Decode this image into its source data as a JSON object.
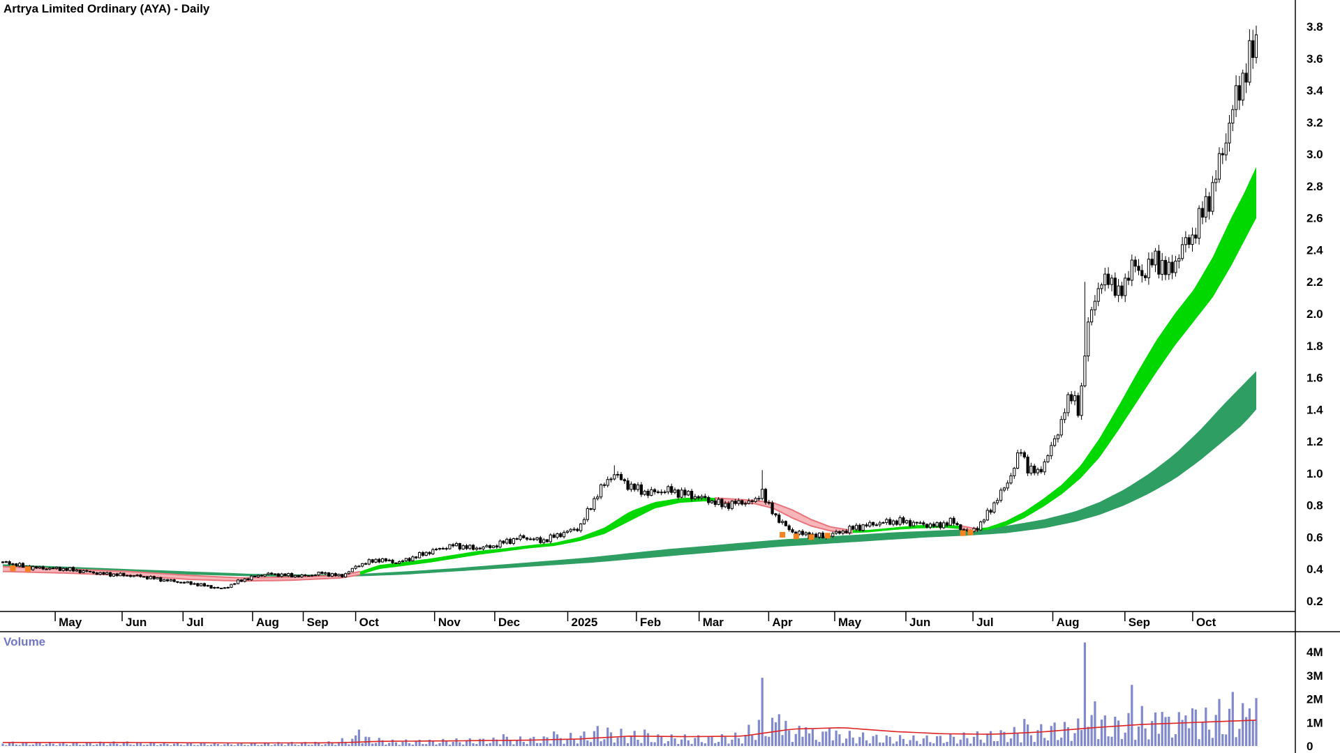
{
  "labels": {
    "volume_panel": "Volume"
  },
  "chart_data": {
    "type": "candlestick",
    "title": "Artrya Limited Ordinary (AYA) - Daily",
    "panels": [
      "price",
      "volume"
    ],
    "grid": false,
    "legend": "none",
    "price_axis": {
      "min": 0.2,
      "max": 3.8,
      "step": 0.2,
      "ticks": [
        3.8,
        3.6,
        3.4,
        3.2,
        3.0,
        2.8,
        2.6,
        2.4,
        2.2,
        2.0,
        1.8,
        1.6,
        1.4,
        1.2,
        1.0,
        0.8,
        0.6,
        0.4,
        0.2
      ]
    },
    "x_axis": {
      "labels": [
        {
          "label": "May",
          "t": 0.0418
        },
        {
          "label": "Jun",
          "t": 0.0952
        },
        {
          "label": "Jul",
          "t": 0.1438
        },
        {
          "label": "Aug",
          "t": 0.1993
        },
        {
          "label": "Sep",
          "t": 0.2397
        },
        {
          "label": "Oct",
          "t": 0.2815
        },
        {
          "label": "Nov",
          "t": 0.3445
        },
        {
          "label": "Dec",
          "t": 0.3925
        },
        {
          "label": "2025",
          "t": 0.4507
        },
        {
          "label": "Feb",
          "t": 0.5055
        },
        {
          "label": "Mar",
          "t": 0.5555
        },
        {
          "label": "Apr",
          "t": 0.611
        },
        {
          "label": "May",
          "t": 0.6637
        },
        {
          "label": "Jun",
          "t": 0.7205
        },
        {
          "label": "Jul",
          "t": 0.774
        },
        {
          "label": "Aug",
          "t": 0.8377
        },
        {
          "label": "Sep",
          "t": 0.8952
        },
        {
          "label": "Oct",
          "t": 0.9493
        }
      ]
    },
    "candle_count": 374,
    "price_anchors": [
      [
        0.004,
        0.44
      ],
      [
        0.02,
        0.41
      ],
      [
        0.05,
        0.4
      ],
      [
        0.08,
        0.37
      ],
      [
        0.11,
        0.355
      ],
      [
        0.13,
        0.33
      ],
      [
        0.155,
        0.305
      ],
      [
        0.175,
        0.275
      ],
      [
        0.19,
        0.33
      ],
      [
        0.21,
        0.37
      ],
      [
        0.24,
        0.355
      ],
      [
        0.255,
        0.375
      ],
      [
        0.27,
        0.355
      ],
      [
        0.285,
        0.43
      ],
      [
        0.3,
        0.46
      ],
      [
        0.315,
        0.44
      ],
      [
        0.33,
        0.48
      ],
      [
        0.345,
        0.52
      ],
      [
        0.36,
        0.55
      ],
      [
        0.375,
        0.53
      ],
      [
        0.39,
        0.54
      ],
      [
        0.4,
        0.57
      ],
      [
        0.415,
        0.6
      ],
      [
        0.43,
        0.575
      ],
      [
        0.445,
        0.62
      ],
      [
        0.46,
        0.66
      ],
      [
        0.475,
        0.88
      ],
      [
        0.487,
        1.0
      ],
      [
        0.5,
        0.92
      ],
      [
        0.515,
        0.875
      ],
      [
        0.53,
        0.895
      ],
      [
        0.545,
        0.87
      ],
      [
        0.56,
        0.84
      ],
      [
        0.575,
        0.8
      ],
      [
        0.59,
        0.82
      ],
      [
        0.6,
        0.82
      ],
      [
        0.6055,
        0.9
      ],
      [
        0.61,
        0.8
      ],
      [
        0.618,
        0.72
      ],
      [
        0.628,
        0.64
      ],
      [
        0.64,
        0.615
      ],
      [
        0.655,
        0.605
      ],
      [
        0.665,
        0.625
      ],
      [
        0.68,
        0.66
      ],
      [
        0.7,
        0.69
      ],
      [
        0.715,
        0.7
      ],
      [
        0.73,
        0.685
      ],
      [
        0.745,
        0.67
      ],
      [
        0.757,
        0.7
      ],
      [
        0.764,
        0.66
      ],
      [
        0.77,
        0.63
      ],
      [
        0.774,
        0.645
      ],
      [
        0.78,
        0.68
      ],
      [
        0.79,
        0.8
      ],
      [
        0.8,
        0.92
      ],
      [
        0.806,
        1.02
      ],
      [
        0.812,
        1.15
      ],
      [
        0.818,
        1.03
      ],
      [
        0.826,
        1.0
      ],
      [
        0.833,
        1.1
      ],
      [
        0.84,
        1.22
      ],
      [
        0.848,
        1.42
      ],
      [
        0.854,
        1.5
      ],
      [
        0.859,
        1.38
      ],
      [
        0.864,
        1.8
      ],
      [
        0.868,
        2.05
      ],
      [
        0.875,
        2.15
      ],
      [
        0.882,
        2.25
      ],
      [
        0.89,
        2.1
      ],
      [
        0.9,
        2.3
      ],
      [
        0.91,
        2.25
      ],
      [
        0.92,
        2.35
      ],
      [
        0.93,
        2.25
      ],
      [
        0.94,
        2.4
      ],
      [
        0.95,
        2.5
      ],
      [
        0.958,
        2.65
      ],
      [
        0.966,
        2.8
      ],
      [
        0.974,
        3.05
      ],
      [
        0.982,
        3.3
      ],
      [
        0.99,
        3.5
      ],
      [
        1.0,
        3.7
      ]
    ],
    "wick_events": [
      [
        0.487,
        1.05,
        null
      ],
      [
        0.6055,
        1.02,
        null
      ],
      [
        0.864,
        2.2,
        1.55
      ],
      [
        0.998,
        3.78,
        null
      ]
    ],
    "ribbon_fast": {
      "anchors": [
        [
          0,
          0.415,
          0.385
        ],
        [
          0.05,
          0.4,
          0.375
        ],
        [
          0.1,
          0.385,
          0.36
        ],
        [
          0.15,
          0.36,
          0.335
        ],
        [
          0.19,
          0.345,
          0.325
        ],
        [
          0.23,
          0.35,
          0.33
        ],
        [
          0.27,
          0.36,
          0.345
        ],
        [
          0.285,
          0.385,
          0.365
        ],
        [
          0.3,
          0.425,
          0.4
        ],
        [
          0.32,
          0.445,
          0.42
        ],
        [
          0.34,
          0.465,
          0.44
        ],
        [
          0.36,
          0.49,
          0.465
        ],
        [
          0.38,
          0.515,
          0.49
        ],
        [
          0.4,
          0.53,
          0.51
        ],
        [
          0.42,
          0.55,
          0.53
        ],
        [
          0.44,
          0.565,
          0.545
        ],
        [
          0.46,
          0.6,
          0.575
        ],
        [
          0.48,
          0.66,
          0.62
        ],
        [
          0.5,
          0.76,
          0.7
        ],
        [
          0.52,
          0.82,
          0.78
        ],
        [
          0.54,
          0.845,
          0.815
        ],
        [
          0.56,
          0.85,
          0.825
        ],
        [
          0.58,
          0.84,
          0.815
        ],
        [
          0.6,
          0.83,
          0.81
        ],
        [
          0.615,
          0.815,
          0.78
        ],
        [
          0.63,
          0.77,
          0.72
        ],
        [
          0.645,
          0.71,
          0.67
        ],
        [
          0.66,
          0.665,
          0.64
        ],
        [
          0.675,
          0.645,
          0.625
        ],
        [
          0.69,
          0.645,
          0.63
        ],
        [
          0.71,
          0.66,
          0.645
        ],
        [
          0.73,
          0.675,
          0.655
        ],
        [
          0.75,
          0.68,
          0.66
        ],
        [
          0.765,
          0.67,
          0.65
        ],
        [
          0.775,
          0.655,
          0.64
        ],
        [
          0.785,
          0.66,
          0.645
        ],
        [
          0.8,
          0.7,
          0.67
        ],
        [
          0.815,
          0.76,
          0.72
        ],
        [
          0.83,
          0.84,
          0.79
        ],
        [
          0.845,
          0.93,
          0.87
        ],
        [
          0.86,
          1.05,
          0.97
        ],
        [
          0.875,
          1.22,
          1.1
        ],
        [
          0.89,
          1.42,
          1.27
        ],
        [
          0.905,
          1.63,
          1.45
        ],
        [
          0.92,
          1.83,
          1.63
        ],
        [
          0.935,
          2.0,
          1.8
        ],
        [
          0.95,
          2.15,
          1.95
        ],
        [
          0.965,
          2.35,
          2.1
        ],
        [
          0.98,
          2.6,
          2.3
        ],
        [
          0.99,
          2.75,
          2.45
        ],
        [
          1.0,
          2.92,
          2.6
        ]
      ],
      "segments": [
        {
          "t0": 0.0,
          "t1": 0.285,
          "kind": "bear"
        },
        {
          "t0": 0.285,
          "t1": 0.568,
          "kind": "bull"
        },
        {
          "t0": 0.568,
          "t1": 0.678,
          "kind": "bear"
        },
        {
          "t0": 0.678,
          "t1": 0.764,
          "kind": "bull"
        },
        {
          "t0": 0.764,
          "t1": 0.778,
          "kind": "bear"
        },
        {
          "t0": 0.778,
          "t1": 1.0,
          "kind": "bull"
        }
      ]
    },
    "ribbon_slow": {
      "anchors": [
        [
          0,
          0.43,
          0.405
        ],
        [
          0.05,
          0.415,
          0.395
        ],
        [
          0.1,
          0.4,
          0.38
        ],
        [
          0.15,
          0.385,
          0.365
        ],
        [
          0.2,
          0.37,
          0.355
        ],
        [
          0.25,
          0.365,
          0.35
        ],
        [
          0.285,
          0.37,
          0.355
        ],
        [
          0.32,
          0.385,
          0.365
        ],
        [
          0.36,
          0.405,
          0.385
        ],
        [
          0.4,
          0.43,
          0.405
        ],
        [
          0.44,
          0.455,
          0.425
        ],
        [
          0.47,
          0.475,
          0.44
        ],
        [
          0.5,
          0.5,
          0.46
        ],
        [
          0.53,
          0.525,
          0.48
        ],
        [
          0.56,
          0.545,
          0.5
        ],
        [
          0.59,
          0.565,
          0.52
        ],
        [
          0.62,
          0.585,
          0.54
        ],
        [
          0.65,
          0.6,
          0.555
        ],
        [
          0.68,
          0.615,
          0.57
        ],
        [
          0.71,
          0.63,
          0.585
        ],
        [
          0.74,
          0.64,
          0.6
        ],
        [
          0.77,
          0.65,
          0.61
        ],
        [
          0.8,
          0.67,
          0.625
        ],
        [
          0.83,
          0.71,
          0.655
        ],
        [
          0.855,
          0.76,
          0.695
        ],
        [
          0.875,
          0.82,
          0.74
        ],
        [
          0.895,
          0.9,
          0.8
        ],
        [
          0.915,
          1.0,
          0.875
        ],
        [
          0.935,
          1.12,
          0.965
        ],
        [
          0.955,
          1.27,
          1.08
        ],
        [
          0.975,
          1.44,
          1.21
        ],
        [
          0.99,
          1.56,
          1.31
        ],
        [
          1.0,
          1.64,
          1.4
        ]
      ]
    },
    "orange_markers": [
      [
        0.008,
        0.405
      ],
      [
        0.02,
        0.4
      ],
      [
        0.622,
        0.615
      ],
      [
        0.633,
        0.605
      ],
      [
        0.645,
        0.6
      ],
      [
        0.658,
        0.61
      ],
      [
        0.766,
        0.625
      ],
      [
        0.772,
        0.63
      ]
    ],
    "volume": {
      "label": "Volume",
      "axis_ticks": [
        {
          "label": "4M",
          "value": 4
        },
        {
          "label": "3M",
          "value": 3
        },
        {
          "label": "2M",
          "value": 2
        },
        {
          "label": "1M",
          "value": 1
        },
        {
          "label": "0",
          "value": 0
        }
      ],
      "base_anchors": [
        [
          0,
          0.12
        ],
        [
          0.05,
          0.1
        ],
        [
          0.1,
          0.12
        ],
        [
          0.14,
          0.09
        ],
        [
          0.18,
          0.08
        ],
        [
          0.22,
          0.1
        ],
        [
          0.26,
          0.12
        ],
        [
          0.285,
          0.3
        ],
        [
          0.31,
          0.16
        ],
        [
          0.35,
          0.18
        ],
        [
          0.39,
          0.22
        ],
        [
          0.43,
          0.26
        ],
        [
          0.46,
          0.35
        ],
        [
          0.48,
          0.5
        ],
        [
          0.5,
          0.4
        ],
        [
          0.53,
          0.3
        ],
        [
          0.56,
          0.28
        ],
        [
          0.59,
          0.35
        ],
        [
          0.605,
          0.9
        ],
        [
          0.62,
          0.7
        ],
        [
          0.64,
          0.45
        ],
        [
          0.67,
          0.4
        ],
        [
          0.7,
          0.3
        ],
        [
          0.73,
          0.26
        ],
        [
          0.76,
          0.32
        ],
        [
          0.78,
          0.38
        ],
        [
          0.8,
          0.45
        ],
        [
          0.82,
          0.55
        ],
        [
          0.84,
          0.6
        ],
        [
          0.86,
          0.7
        ],
        [
          0.875,
          0.85
        ],
        [
          0.89,
          0.8
        ],
        [
          0.91,
          0.9
        ],
        [
          0.93,
          0.85
        ],
        [
          0.95,
          0.95
        ],
        [
          0.97,
          1.0
        ],
        [
          0.985,
          1.05
        ],
        [
          1.0,
          1.2
        ]
      ],
      "spikes": [
        [
          0.285,
          0.7
        ],
        [
          0.4,
          0.5
        ],
        [
          0.44,
          0.62
        ],
        [
          0.475,
          0.85
        ],
        [
          0.512,
          0.7
        ],
        [
          0.605,
          2.9
        ],
        [
          0.618,
          1.35
        ],
        [
          0.64,
          0.8
        ],
        [
          0.66,
          0.75
        ],
        [
          0.814,
          1.15
        ],
        [
          0.84,
          1.0
        ],
        [
          0.864,
          4.4
        ],
        [
          0.87,
          1.9
        ],
        [
          0.88,
          1.3
        ],
        [
          0.902,
          2.6
        ],
        [
          0.91,
          1.7
        ],
        [
          0.925,
          1.45
        ],
        [
          0.945,
          1.3
        ],
        [
          0.953,
          1.55
        ],
        [
          0.97,
          2.0
        ],
        [
          0.98,
          2.3
        ],
        [
          0.995,
          1.6
        ]
      ],
      "ma_anchors": [
        [
          0,
          0.15
        ],
        [
          0.1,
          0.15
        ],
        [
          0.2,
          0.13
        ],
        [
          0.27,
          0.14
        ],
        [
          0.3,
          0.2
        ],
        [
          0.36,
          0.22
        ],
        [
          0.42,
          0.25
        ],
        [
          0.46,
          0.3
        ],
        [
          0.5,
          0.42
        ],
        [
          0.55,
          0.4
        ],
        [
          0.59,
          0.42
        ],
        [
          0.63,
          0.72
        ],
        [
          0.67,
          0.78
        ],
        [
          0.71,
          0.62
        ],
        [
          0.75,
          0.52
        ],
        [
          0.79,
          0.5
        ],
        [
          0.83,
          0.6
        ],
        [
          0.87,
          0.78
        ],
        [
          0.91,
          0.92
        ],
        [
          0.95,
          1.0
        ],
        [
          1.0,
          1.1
        ]
      ]
    },
    "colors": {
      "background": "#ffffff",
      "candle_up": "#ffffff",
      "candle_down": "#000000",
      "candle_outline": "#000000",
      "bull_ribbon": "#00d800",
      "slow_ribbon": "#2f9e63",
      "bear_ribbon_fill": "#f6b6ba",
      "bear_ribbon_edge": "#e8747c",
      "orange_marker": "#f5831f",
      "volume_bar": "#8089cc",
      "volume_ma": "#dd2222",
      "axis_line": "#000000",
      "axis_text": "#000000",
      "volume_label_color": "#7277c4"
    }
  }
}
